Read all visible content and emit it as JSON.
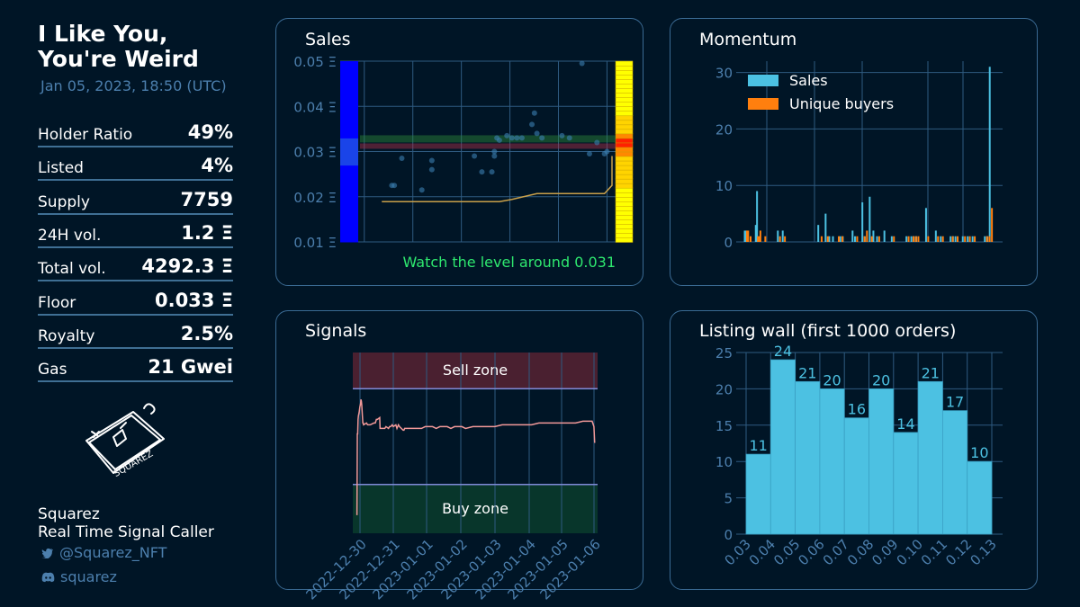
{
  "collection": {
    "title_line1": "I Like You,",
    "title_line2": "You're Weird",
    "date": "Jan 05, 2023, 18:50 (UTC)"
  },
  "stats": [
    {
      "label": "Holder Ratio",
      "value": "49%"
    },
    {
      "label": "Listed",
      "value": "4%"
    },
    {
      "label": "Supply",
      "value": "7759"
    },
    {
      "label": "24H vol.",
      "value": "1.2 Ξ"
    },
    {
      "label": "Total vol.",
      "value": "4292.3 Ξ"
    },
    {
      "label": "Floor",
      "value": "0.033 Ξ"
    },
    {
      "label": "Royalty",
      "value": "2.5%"
    },
    {
      "label": "Gas",
      "value": "21 Gwei"
    }
  ],
  "logo_text": "SQUAREZ",
  "footer": {
    "name": "Squarez",
    "role": "Real Time Signal Caller",
    "twitter": "@Squarez_NFT",
    "discord": "squarez"
  },
  "colors": {
    "background": "#001526",
    "panel_border": "#3a6a93",
    "sales_bar": "#4cc1e2",
    "buyers_bar": "#ff7f0e",
    "note_green": "#2ee86f",
    "signal_line": "#f29999"
  },
  "chart_data": [
    {
      "id": "sales",
      "type": "scatter",
      "title": "Sales",
      "ylim": [
        0.01,
        0.05
      ],
      "yticks": [
        "0.01 Ξ",
        "0.02 Ξ",
        "0.03 Ξ",
        "0.04 Ξ",
        "0.05 Ξ"
      ],
      "points": [
        [
          0.12,
          0.0225
        ],
        [
          0.13,
          0.0225
        ],
        [
          0.16,
          0.0285
        ],
        [
          0.24,
          0.0215
        ],
        [
          0.28,
          0.026
        ],
        [
          0.28,
          0.028
        ],
        [
          0.45,
          0.029
        ],
        [
          0.48,
          0.0255
        ],
        [
          0.52,
          0.0255
        ],
        [
          0.53,
          0.029
        ],
        [
          0.53,
          0.03
        ],
        [
          0.54,
          0.033
        ],
        [
          0.55,
          0.0325
        ],
        [
          0.58,
          0.0335
        ],
        [
          0.6,
          0.033
        ],
        [
          0.62,
          0.033
        ],
        [
          0.64,
          0.033
        ],
        [
          0.68,
          0.036
        ],
        [
          0.69,
          0.0385
        ],
        [
          0.7,
          0.034
        ],
        [
          0.72,
          0.033
        ],
        [
          0.8,
          0.0335
        ],
        [
          0.83,
          0.033
        ],
        [
          0.88,
          0.0495
        ],
        [
          0.91,
          0.0295
        ],
        [
          0.94,
          0.032
        ],
        [
          0.97,
          0.0295
        ],
        [
          0.98,
          0.03
        ]
      ],
      "floor_line": [
        [
          0.08,
          0.0189
        ],
        [
          0.55,
          0.0189
        ],
        [
          0.6,
          0.0194
        ],
        [
          0.7,
          0.0207
        ],
        [
          0.97,
          0.0207
        ],
        [
          1.0,
          0.0225
        ],
        [
          1.0,
          0.029
        ]
      ],
      "support_band": 0.0328,
      "resistance_band": 0.0312,
      "note": "Watch the level around 0.031"
    },
    {
      "id": "momentum",
      "type": "bar",
      "title": "Momentum",
      "ylim": [
        0,
        32
      ],
      "yticks": [
        0,
        10,
        20,
        30
      ],
      "legend": [
        "Sales",
        "Unique buyers"
      ],
      "series": [
        {
          "name": "Sales",
          "x": [
            0.02,
            0.03,
            0.11,
            0.12,
            0.29,
            0.33,
            0.62,
            0.68,
            0.71,
            0.74,
            0.8,
            0.82,
            0.9,
            0.92,
            0.98,
            1.0,
            1.04,
            1.07,
            1.1,
            1.16,
            1.22,
            1.34,
            1.38,
            1.4,
            1.42,
            1.5,
            1.58,
            1.62,
            1.7,
            1.72,
            1.74,
            1.8,
            1.84,
            1.88,
            1.98,
            2.0,
            2.02
          ],
          "values": [
            2,
            2,
            3,
            9,
            2,
            2,
            3,
            5,
            1,
            1,
            1,
            1,
            2,
            1,
            7,
            1,
            8,
            2,
            1,
            2,
            1,
            1,
            1,
            1,
            1,
            6,
            2,
            1,
            1,
            1,
            1,
            1,
            1,
            1,
            1,
            1,
            31
          ]
        },
        {
          "name": "Unique buyers",
          "x": [
            0.02,
            0.03,
            0.05,
            0.11,
            0.12,
            0.13,
            0.17,
            0.29,
            0.33,
            0.63,
            0.68,
            0.77,
            0.8,
            0.92,
            0.98,
            1.0,
            1.04,
            1.1,
            1.22,
            1.34,
            1.38,
            1.4,
            1.42,
            1.5,
            1.58,
            1.62,
            1.7,
            1.74,
            1.8,
            1.84,
            1.88,
            1.98,
            2.0,
            2.02
          ],
          "values": [
            2,
            2,
            1,
            1,
            1,
            2,
            1,
            1,
            1,
            1,
            1,
            1,
            1,
            1,
            1,
            2,
            1,
            1,
            1,
            1,
            1,
            1,
            1,
            1,
            1,
            1,
            1,
            1,
            1,
            1,
            1,
            1,
            1,
            6
          ]
        }
      ]
    },
    {
      "id": "signals",
      "type": "line",
      "title": "Signals",
      "zones": {
        "sell": "Sell zone",
        "buy": "Buy zone"
      },
      "xticks": [
        "2022-12-30",
        "2022-12-31",
        "2023-01-01",
        "2023-01-02",
        "2023-01-03",
        "2023-01-04",
        "2023-01-05",
        "2023-01-06"
      ],
      "ylim": [
        0,
        100
      ],
      "sell_threshold": 80,
      "buy_threshold": 27,
      "points": [
        [
          0.04,
          10
        ],
        [
          0.05,
          55
        ],
        [
          0.06,
          55
        ],
        [
          0.07,
          63
        ],
        [
          0.08,
          65
        ],
        [
          0.09,
          66
        ],
        [
          0.1,
          67
        ],
        [
          0.12,
          70
        ],
        [
          0.13,
          71
        ],
        [
          0.14,
          72
        ],
        [
          0.15,
          74
        ],
        [
          0.16,
          73
        ],
        [
          0.17,
          71
        ],
        [
          0.2,
          61
        ],
        [
          0.21,
          61
        ],
        [
          0.22,
          60
        ],
        [
          0.3,
          61
        ],
        [
          0.33,
          60
        ],
        [
          0.4,
          60
        ],
        [
          0.5,
          61
        ],
        [
          0.54,
          61
        ],
        [
          0.57,
          63
        ],
        [
          0.6,
          63
        ],
        [
          0.66,
          64
        ],
        [
          0.67,
          58
        ],
        [
          0.7,
          58
        ],
        [
          0.72,
          58
        ],
        [
          0.8,
          58
        ],
        [
          0.83,
          59
        ],
        [
          0.9,
          58
        ],
        [
          0.93,
          59
        ],
        [
          0.96,
          59
        ],
        [
          1.0,
          60
        ],
        [
          1.03,
          59
        ],
        [
          1.1,
          60
        ],
        [
          1.13,
          58
        ],
        [
          1.17,
          60
        ],
        [
          1.2,
          59
        ],
        [
          1.3,
          57
        ],
        [
          1.32,
          57
        ],
        [
          1.34,
          58
        ],
        [
          1.4,
          58
        ],
        [
          1.5,
          58
        ],
        [
          1.52,
          58
        ],
        [
          1.6,
          58
        ],
        [
          1.65,
          58
        ],
        [
          1.8,
          58
        ],
        [
          1.9,
          59
        ],
        [
          2.0,
          59
        ],
        [
          2.1,
          59
        ],
        [
          2.2,
          58
        ],
        [
          2.3,
          59
        ],
        [
          2.4,
          59
        ],
        [
          2.5,
          59
        ],
        [
          2.6,
          58
        ],
        [
          2.7,
          59
        ],
        [
          2.8,
          59
        ],
        [
          2.9,
          59
        ],
        [
          3.0,
          58
        ],
        [
          3.2,
          59
        ],
        [
          3.4,
          59
        ],
        [
          3.6,
          59
        ],
        [
          3.8,
          59
        ],
        [
          4.0,
          60
        ],
        [
          4.2,
          60
        ],
        [
          4.4,
          60
        ],
        [
          4.6,
          60
        ],
        [
          4.8,
          60
        ],
        [
          5.0,
          61
        ],
        [
          5.2,
          61
        ],
        [
          5.4,
          61
        ],
        [
          5.6,
          61
        ],
        [
          5.8,
          61
        ],
        [
          6.0,
          61
        ],
        [
          6.2,
          62
        ],
        [
          6.4,
          62
        ],
        [
          6.45,
          62
        ],
        [
          6.5,
          59
        ],
        [
          6.52,
          50
        ]
      ]
    },
    {
      "id": "listing_wall",
      "type": "bar",
      "title": "Listing wall (first 1000 orders)",
      "ylim": [
        0,
        25
      ],
      "yticks": [
        0,
        5,
        10,
        15,
        20,
        25
      ],
      "xticks": [
        "0.03",
        "0.04",
        "0.05",
        "0.06",
        "0.07",
        "0.08",
        "0.09",
        "0.10",
        "0.11",
        "0.12",
        "0.13"
      ],
      "values": [
        11,
        24,
        21,
        20,
        16,
        20,
        14,
        21,
        17,
        10
      ]
    }
  ]
}
